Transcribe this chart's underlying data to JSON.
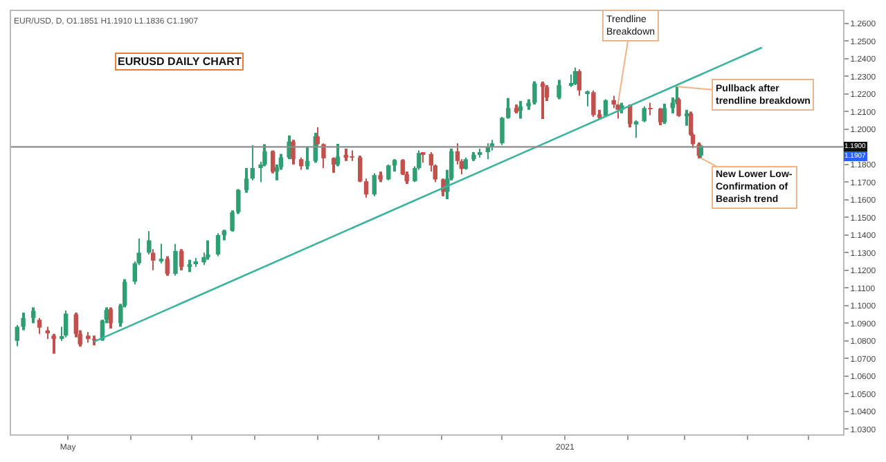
{
  "chart_data": {
    "type": "candlestick",
    "title": "EURUSD DAILY CHART",
    "subtitle": "EUR/USD, D, O1.1851 H1.1910 L1.1836 C1.1907",
    "x": [
      "2020-04-06",
      "2020-04-09",
      "2020-04-14",
      "2020-04-17",
      "2020-04-21",
      "2020-04-24",
      "2020-04-28",
      "2020-04-30",
      "2020-05-05",
      "2020-05-07",
      "2020-05-11",
      "2020-05-14",
      "2020-05-18",
      "2020-05-20",
      "2020-05-22",
      "2020-05-27",
      "2020-05-29",
      "2020-06-03",
      "2020-06-05",
      "2020-06-10",
      "2020-06-12",
      "2020-06-16",
      "2020-06-19",
      "2020-06-23",
      "2020-06-26",
      "2020-06-30",
      "2020-07-03",
      "2020-07-07",
      "2020-07-09",
      "2020-07-14",
      "2020-07-17",
      "2020-07-21",
      "2020-07-24",
      "2020-07-28",
      "2020-07-31",
      "2020-08-04",
      "2020-08-06",
      "2020-08-10",
      "2020-08-12",
      "2020-08-14",
      "2020-08-18",
      "2020-08-20",
      "2020-08-24",
      "2020-08-27",
      "2020-08-31",
      "2020-09-01",
      "2020-09-04",
      "2020-09-09",
      "2020-09-11",
      "2020-09-15",
      "2020-09-18",
      "2020-09-22",
      "2020-09-25",
      "2020-09-29",
      "2020-10-02",
      "2020-10-06",
      "2020-10-09",
      "2020-10-13",
      "2020-10-15",
      "2020-10-19",
      "2020-10-21",
      "2020-10-23",
      "2020-10-27",
      "2020-10-29",
      "2020-11-02",
      "2020-11-04",
      "2020-11-06",
      "2020-11-09",
      "2020-11-11",
      "2020-11-13",
      "2020-11-17",
      "2020-11-20",
      "2020-11-24",
      "2020-11-26",
      "2020-12-01",
      "2020-12-04",
      "2020-12-08",
      "2020-12-10",
      "2020-12-14",
      "2020-12-17",
      "2020-12-21",
      "2020-12-23",
      "2020-12-29",
      "2021-01-04",
      "2021-01-06",
      "2021-01-08",
      "2021-01-12",
      "2021-01-15",
      "2021-01-18",
      "2021-01-21",
      "2021-01-25",
      "2021-01-27",
      "2021-01-29",
      "2021-02-02",
      "2021-02-05",
      "2021-02-09",
      "2021-02-12",
      "2021-02-17",
      "2021-02-19",
      "2021-02-23",
      "2021-02-25",
      "2021-02-26",
      "2021-03-02",
      "2021-03-04",
      "2021-03-05",
      "2021-03-08",
      "2021-03-09"
    ],
    "ohlc": [
      [
        1.08,
        1.089,
        1.077,
        1.088
      ],
      [
        1.088,
        1.096,
        1.086,
        1.093
      ],
      [
        1.093,
        1.099,
        1.09,
        1.097
      ],
      [
        1.092,
        1.093,
        1.084,
        1.0875
      ],
      [
        1.086,
        1.088,
        1.081,
        1.085
      ],
      [
        1.083,
        1.084,
        1.0727,
        1.0815
      ],
      [
        1.0815,
        1.088,
        1.08,
        1.0825
      ],
      [
        1.083,
        1.0972,
        1.082,
        1.0955
      ],
      [
        1.095,
        1.096,
        1.082,
        1.084
      ],
      [
        1.084,
        1.086,
        1.0767,
        1.078
      ],
      [
        1.083,
        1.085,
        1.079,
        1.081
      ],
      [
        1.081,
        1.083,
        1.0775,
        1.0805
      ],
      [
        1.0805,
        1.092,
        1.08,
        1.0915
      ],
      [
        1.092,
        1.099,
        1.09,
        1.0975
      ],
      [
        1.098,
        1.099,
        1.087,
        1.09
      ],
      [
        1.09,
        1.101,
        1.088,
        1.1
      ],
      [
        1.1,
        1.115,
        1.099,
        1.1135
      ],
      [
        1.1135,
        1.125,
        1.112,
        1.124
      ],
      [
        1.124,
        1.138,
        1.123,
        1.13
      ],
      [
        1.13,
        1.1422,
        1.129,
        1.137
      ],
      [
        1.13,
        1.132,
        1.12,
        1.1255
      ],
      [
        1.1255,
        1.135,
        1.124,
        1.1265
      ],
      [
        1.1265,
        1.128,
        1.1169,
        1.118
      ],
      [
        1.118,
        1.1349,
        1.117,
        1.131
      ],
      [
        1.131,
        1.132,
        1.12,
        1.122
      ],
      [
        1.122,
        1.126,
        1.119,
        1.1235
      ],
      [
        1.1235,
        1.127,
        1.122,
        1.1245
      ],
      [
        1.1245,
        1.13,
        1.123,
        1.1275
      ],
      [
        1.1275,
        1.137,
        1.126,
        1.129
      ],
      [
        1.129,
        1.141,
        1.128,
        1.14
      ],
      [
        1.14,
        1.143,
        1.137,
        1.1425
      ],
      [
        1.1425,
        1.154,
        1.142,
        1.153
      ],
      [
        1.153,
        1.166,
        1.152,
        1.1655
      ],
      [
        1.1655,
        1.178,
        1.164,
        1.172
      ],
      [
        1.172,
        1.1909,
        1.171,
        1.178
      ],
      [
        1.178,
        1.1815,
        1.17,
        1.18
      ],
      [
        1.18,
        1.1915,
        1.179,
        1.1875
      ],
      [
        1.1875,
        1.188,
        1.175,
        1.176
      ],
      [
        1.176,
        1.18,
        1.171,
        1.1785
      ],
      [
        1.1785,
        1.186,
        1.177,
        1.184
      ],
      [
        1.184,
        1.1965,
        1.183,
        1.193
      ],
      [
        1.193,
        1.194,
        1.18,
        1.183
      ],
      [
        1.183,
        1.184,
        1.177,
        1.179
      ],
      [
        1.179,
        1.19,
        1.1772,
        1.182
      ],
      [
        1.182,
        1.198,
        1.181,
        1.196
      ],
      [
        1.196,
        1.2011,
        1.19,
        1.1915
      ],
      [
        1.1915,
        1.192,
        1.178,
        1.1835
      ],
      [
        1.1835,
        1.184,
        1.1753,
        1.18
      ],
      [
        1.18,
        1.1917,
        1.179,
        1.1845
      ],
      [
        1.185,
        1.189,
        1.182,
        1.1845
      ],
      [
        1.1845,
        1.188,
        1.182,
        1.184
      ],
      [
        1.184,
        1.185,
        1.17,
        1.1705
      ],
      [
        1.1705,
        1.172,
        1.1612,
        1.163
      ],
      [
        1.163,
        1.175,
        1.162,
        1.174
      ],
      [
        1.174,
        1.176,
        1.17,
        1.1715
      ],
      [
        1.1715,
        1.18,
        1.171,
        1.1795
      ],
      [
        1.1795,
        1.183,
        1.176,
        1.1825
      ],
      [
        1.1825,
        1.183,
        1.174,
        1.1745
      ],
      [
        1.1745,
        1.176,
        1.169,
        1.1705
      ],
      [
        1.1705,
        1.179,
        1.17,
        1.178
      ],
      [
        1.178,
        1.188,
        1.177,
        1.1865
      ],
      [
        1.1865,
        1.187,
        1.181,
        1.186
      ],
      [
        1.186,
        1.187,
        1.176,
        1.1795
      ],
      [
        1.1795,
        1.18,
        1.17,
        1.1715
      ],
      [
        1.1715,
        1.172,
        1.162,
        1.1645
      ],
      [
        1.1645,
        1.177,
        1.1603,
        1.172
      ],
      [
        1.172,
        1.189,
        1.171,
        1.1875
      ],
      [
        1.1875,
        1.192,
        1.18,
        1.182
      ],
      [
        1.182,
        1.183,
        1.1745,
        1.1775
      ],
      [
        1.1775,
        1.184,
        1.177,
        1.183
      ],
      [
        1.183,
        1.187,
        1.182,
        1.1855
      ],
      [
        1.1855,
        1.189,
        1.184,
        1.187
      ],
      [
        1.187,
        1.192,
        1.183,
        1.19
      ],
      [
        1.19,
        1.194,
        1.188,
        1.192
      ],
      [
        1.192,
        1.207,
        1.191,
        1.2065
      ],
      [
        1.2065,
        1.2177,
        1.206,
        1.212
      ],
      [
        1.212,
        1.214,
        1.209,
        1.2105
      ],
      [
        1.2105,
        1.216,
        1.206,
        1.213
      ],
      [
        1.213,
        1.217,
        1.211,
        1.215
      ],
      [
        1.215,
        1.2272,
        1.214,
        1.226
      ],
      [
        1.226,
        1.227,
        1.2058,
        1.224
      ],
      [
        1.224,
        1.225,
        1.216,
        1.218
      ],
      [
        1.218,
        1.228,
        1.217,
        1.225
      ],
      [
        1.225,
        1.231,
        1.224,
        1.2255
      ],
      [
        1.2255,
        1.2349,
        1.225,
        1.233
      ],
      [
        1.233,
        1.234,
        1.219,
        1.222
      ],
      [
        1.22,
        1.222,
        1.213,
        1.221
      ],
      [
        1.221,
        1.222,
        1.207,
        1.208
      ],
      [
        1.2085,
        1.211,
        1.2054,
        1.207
      ],
      [
        1.2075,
        1.217,
        1.207,
        1.2165
      ],
      [
        1.2165,
        1.219,
        1.212,
        1.214
      ],
      [
        1.214,
        1.215,
        1.206,
        1.211
      ],
      [
        1.211,
        1.215,
        1.209,
        1.2135
      ],
      [
        1.2135,
        1.214,
        1.201,
        1.203
      ],
      [
        1.203,
        1.205,
        1.1952,
        1.2045
      ],
      [
        1.2045,
        1.213,
        1.204,
        1.212
      ],
      [
        1.212,
        1.215,
        1.208,
        1.2115
      ],
      [
        1.2115,
        1.212,
        1.2023,
        1.204
      ],
      [
        1.204,
        1.2145,
        1.203,
        1.212
      ],
      [
        1.212,
        1.218,
        1.209,
        1.215
      ],
      [
        1.215,
        1.2243,
        1.214,
        1.217
      ],
      [
        1.217,
        1.218,
        1.207,
        1.2075
      ],
      [
        1.2075,
        1.211,
        1.202,
        1.209
      ],
      [
        1.209,
        1.21,
        1.1963,
        1.197
      ],
      [
        1.197,
        1.198,
        1.1893,
        1.1915
      ],
      [
        1.1915,
        1.1925,
        1.1835,
        1.185
      ],
      [
        1.1851,
        1.191,
        1.1836,
        1.1907
      ]
    ],
    "colors": [
      "#2f9e72",
      "#2f9e72",
      "#2f9e72",
      "#c2504d",
      "#c2504d",
      "#c2504d",
      "#2f9e72",
      "#2f9e72",
      "#c2504d",
      "#c2504d",
      "#c2504d",
      "#c2504d",
      "#2f9e72",
      "#2f9e72",
      "#c2504d",
      "#2f9e72",
      "#2f9e72",
      "#2f9e72",
      "#2f9e72",
      "#2f9e72",
      "#c2504d",
      "#2f9e72",
      "#c2504d",
      "#2f9e72",
      "#c2504d",
      "#2f9e72",
      "#2f9e72",
      "#2f9e72",
      "#2f9e72",
      "#2f9e72",
      "#2f9e72",
      "#2f9e72",
      "#2f9e72",
      "#2f9e72",
      "#2f9e72",
      "#2f9e72",
      "#2f9e72",
      "#c2504d",
      "#2f9e72",
      "#2f9e72",
      "#2f9e72",
      "#c2504d",
      "#c2504d",
      "#2f9e72",
      "#2f9e72",
      "#c2504d",
      "#c2504d",
      "#c2504d",
      "#2f9e72",
      "#c2504d",
      "#c2504d",
      "#c2504d",
      "#c2504d",
      "#2f9e72",
      "#c2504d",
      "#2f9e72",
      "#2f9e72",
      "#c2504d",
      "#c2504d",
      "#2f9e72",
      "#2f9e72",
      "#c2504d",
      "#c2504d",
      "#c2504d",
      "#c2504d",
      "#2f9e72",
      "#2f9e72",
      "#c2504d",
      "#c2504d",
      "#2f9e72",
      "#2f9e72",
      "#2f9e72",
      "#2f9e72",
      "#2f9e72",
      "#2f9e72",
      "#2f9e72",
      "#c2504d",
      "#2f9e72",
      "#2f9e72",
      "#2f9e72",
      "#c2504d",
      "#c2504d",
      "#2f9e72",
      "#2f9e72",
      "#2f9e72",
      "#c2504d",
      "#2f9e72",
      "#c2504d",
      "#c2504d",
      "#2f9e72",
      "#c2504d",
      "#c2504d",
      "#2f9e72",
      "#c2504d",
      "#2f9e72",
      "#2f9e72",
      "#c2504d",
      "#c2504d",
      "#2f9e72",
      "#2f9e72",
      "#2f9e72",
      "#c2504d",
      "#2f9e72",
      "#c2504d",
      "#c2504d",
      "#c2504d",
      "#2f9e72"
    ],
    "series": [
      {
        "type": "line",
        "color": "#3cb39c",
        "x": [
          "2020-05-14",
          "2021-04-08"
        ],
        "values": [
          1.0796,
          1.2463
        ]
      }
    ],
    "xlim": [
      "2020-04-03",
      "2021-05-18"
    ],
    "xticks": [
      {
        "value": "2020-05-01",
        "label": "May"
      },
      {
        "value": "2020-06-01",
        "label": null
      },
      {
        "value": "2020-07-01",
        "label": null
      },
      {
        "value": "2020-08-01",
        "label": null
      },
      {
        "value": "2020-09-01",
        "label": null
      },
      {
        "value": "2020-10-01",
        "label": null
      },
      {
        "value": "2020-11-01",
        "label": null
      },
      {
        "value": "2020-12-01",
        "label": null
      },
      {
        "value": "2021-01-01",
        "label": "2021"
      },
      {
        "value": "2021-02-01",
        "label": null
      },
      {
        "value": "2021-03-01",
        "label": null
      },
      {
        "value": "2021-04-01",
        "label": null
      },
      {
        "value": "2021-05-01",
        "label": null
      }
    ],
    "ylim": [
      1.027,
      1.267
    ],
    "yticks": [
      {
        "value": 1.03,
        "label": "1.0300"
      },
      {
        "value": 1.04,
        "label": "1.0400"
      },
      {
        "value": 1.05,
        "label": "1.0500"
      },
      {
        "value": 1.06,
        "label": "1.0600"
      },
      {
        "value": 1.07,
        "label": "1.0700"
      },
      {
        "value": 1.08,
        "label": "1.0800"
      },
      {
        "value": 1.09,
        "label": "1.0900"
      },
      {
        "value": 1.1,
        "label": "1.1000"
      },
      {
        "value": 1.11,
        "label": "1.1100"
      },
      {
        "value": 1.12,
        "label": "1.1200"
      },
      {
        "value": 1.13,
        "label": "1.1300"
      },
      {
        "value": 1.14,
        "label": "1.1400"
      },
      {
        "value": 1.15,
        "label": "1.1500"
      },
      {
        "value": 1.16,
        "label": "1.1600"
      },
      {
        "value": 1.17,
        "label": "1.1700"
      },
      {
        "value": 1.18,
        "label": "1.1800"
      },
      {
        "value": 1.19,
        "label": null
      },
      {
        "value": 1.2,
        "label": "1.2000"
      },
      {
        "value": 1.21,
        "label": "1.2100"
      },
      {
        "value": 1.22,
        "label": "1.2200"
      },
      {
        "value": 1.23,
        "label": "1.2300"
      },
      {
        "value": 1.24,
        "label": "1.2400"
      },
      {
        "value": 1.25,
        "label": "1.2500"
      },
      {
        "value": 1.26,
        "label": "1.2600"
      }
    ],
    "ref_lines": [
      {
        "axis": "y",
        "value": 1.19,
        "label": "1.1900",
        "color": "#8c8c8c"
      }
    ],
    "annotations": [
      {
        "text": "Trendline\nBreakdown",
        "x": "2021-01-27",
        "y": 1.214
      },
      {
        "text": "Pullback after\ntrendline breakdown",
        "x": "2021-02-25",
        "y": 1.2243
      },
      {
        "text": "New Lower Low-\nConfirmation of\nBearish trend",
        "x": "2021-03-09",
        "y": 1.1836
      },
      "1.1907"
    ]
  }
}
